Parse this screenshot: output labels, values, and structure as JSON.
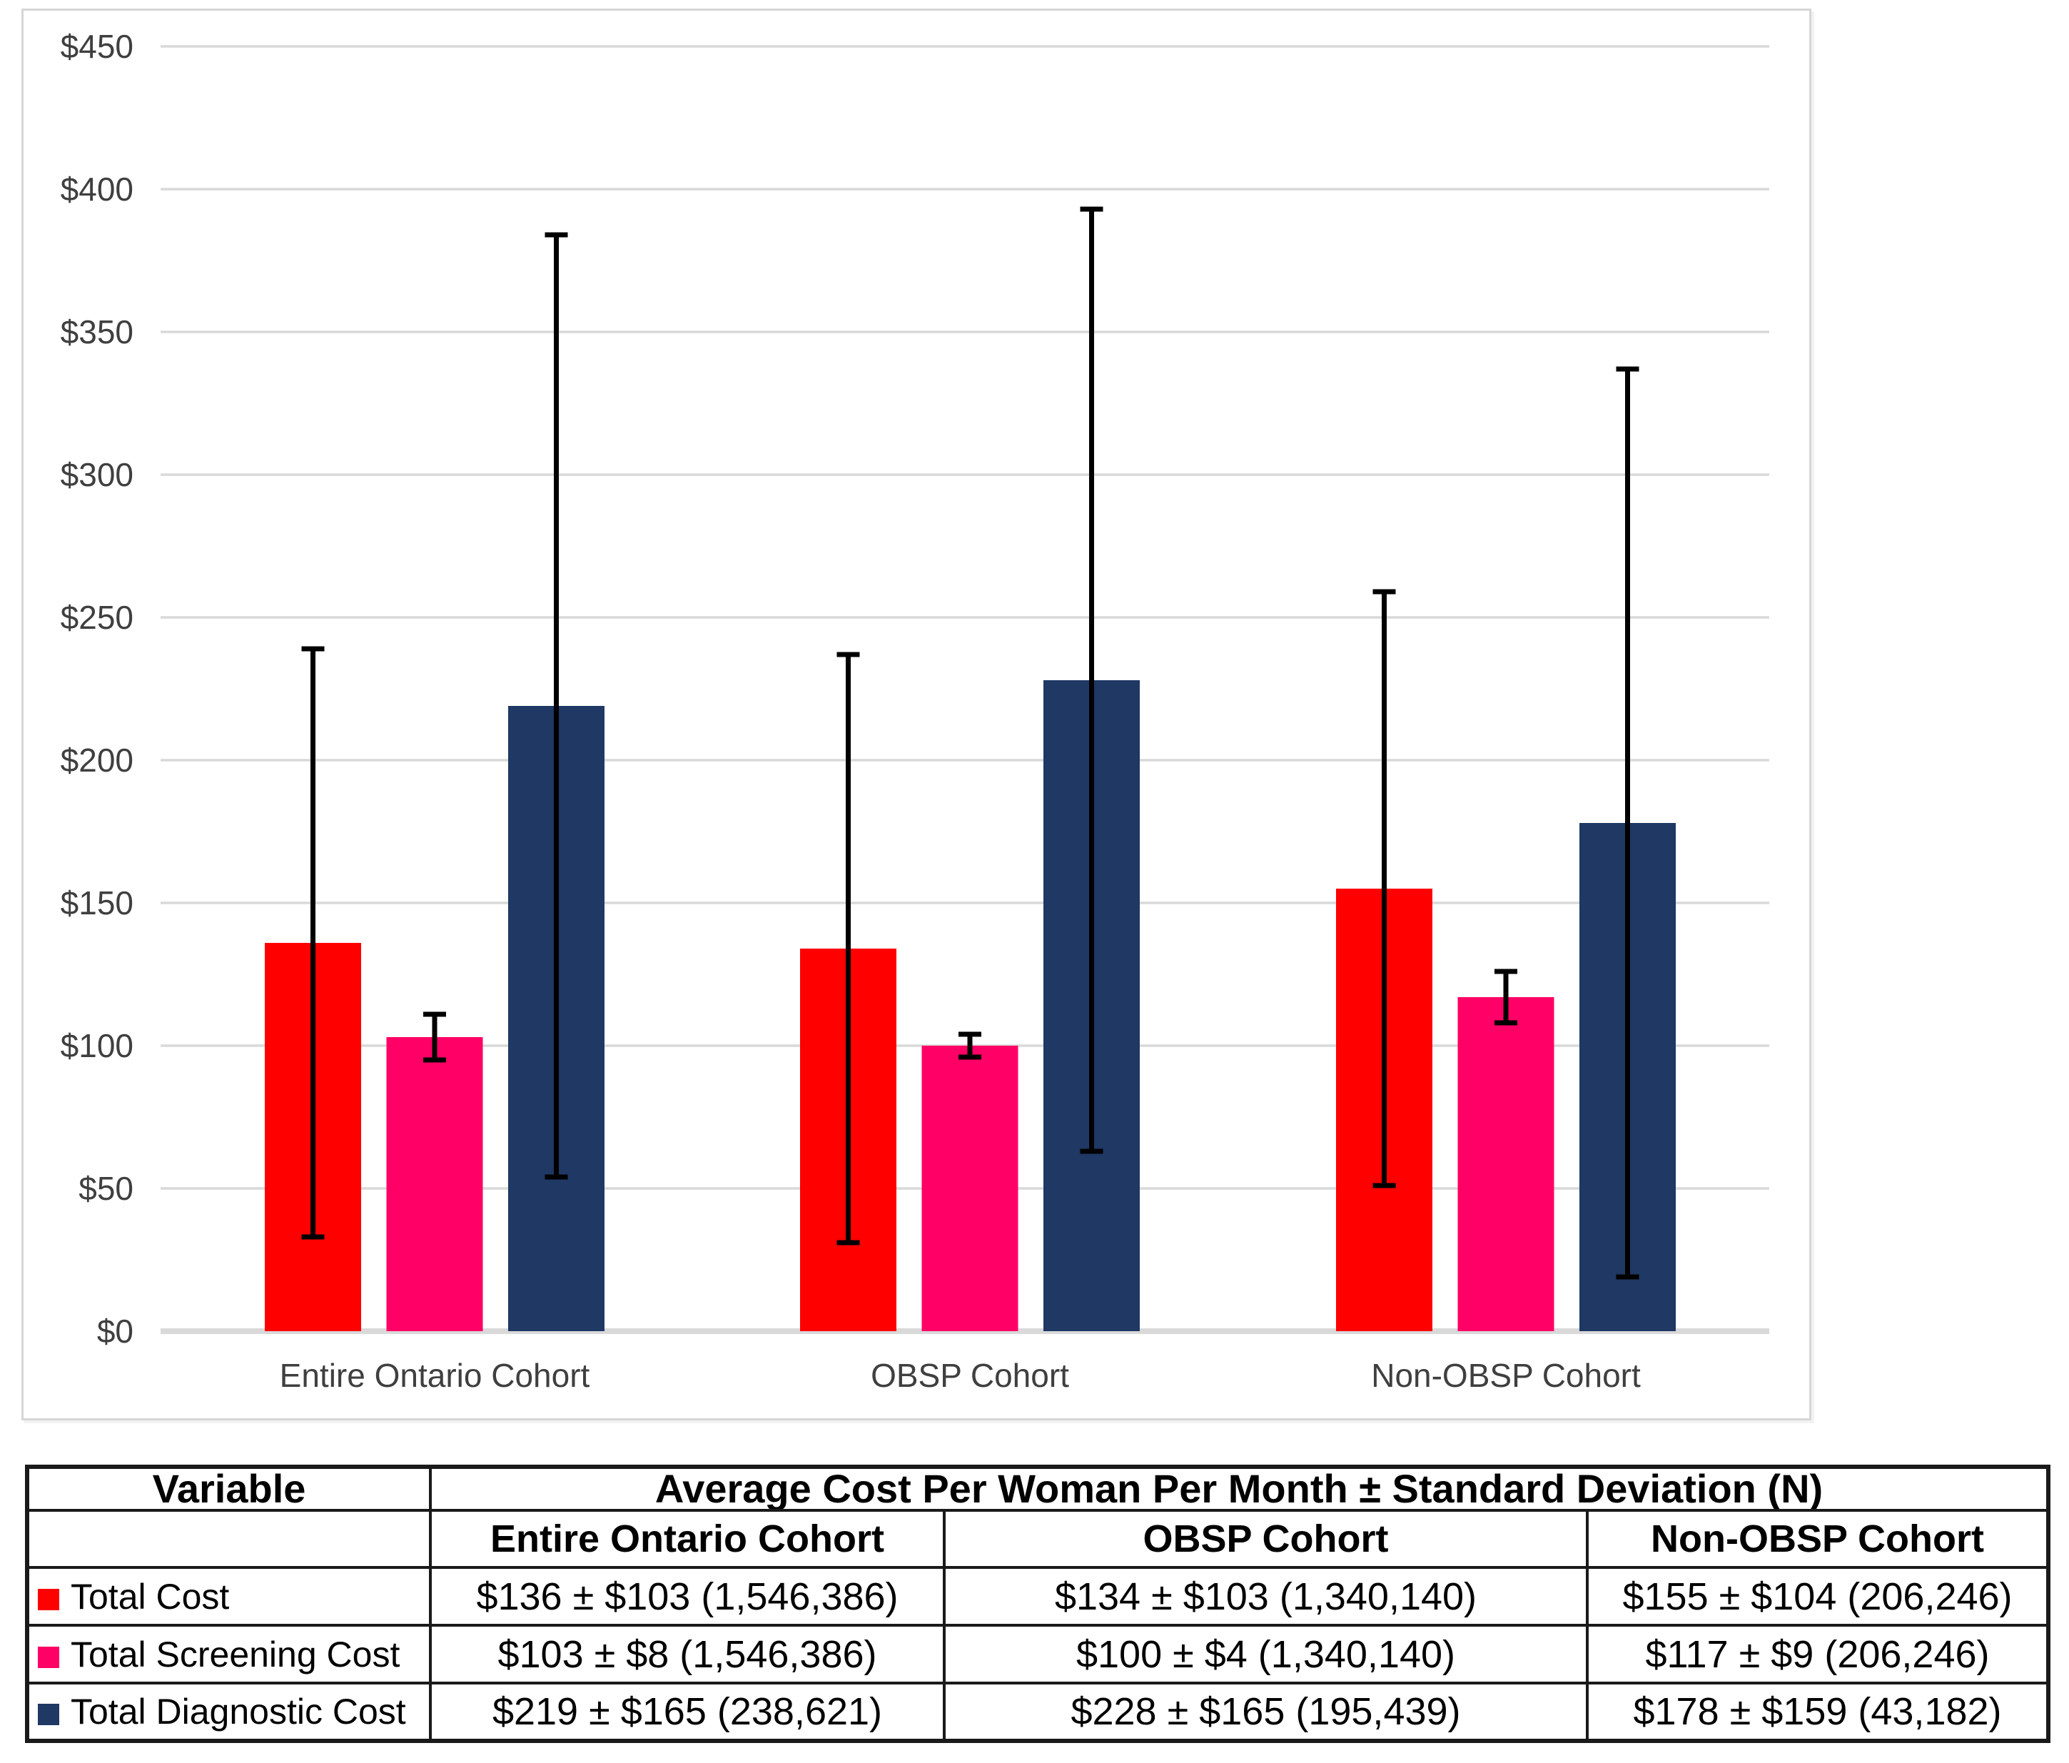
{
  "colors": {
    "gridline": "#D9D9D9",
    "axis_line": "#D9D9D9",
    "axis_text": "#3F3F3F",
    "chart_border": "#D6D6D6",
    "table_border": "#1A1A1A",
    "error_bar": "#000000"
  },
  "chart_data": {
    "type": "bar",
    "title": "",
    "xlabel": "",
    "ylabel": "",
    "categories": [
      "Entire Ontario Cohort",
      "OBSP Cohort",
      "Non-OBSP Cohort"
    ],
    "series": [
      {
        "name": "Total Cost",
        "color": "#FF0000",
        "values": [
          136,
          134,
          155
        ],
        "stdev": [
          103,
          103,
          104
        ]
      },
      {
        "name": "Total Screening Cost",
        "color": "#FF0066",
        "values": [
          103,
          100,
          117
        ],
        "stdev": [
          8,
          4,
          9
        ]
      },
      {
        "name": "Total Diagnostic Cost",
        "color": "#1F3864",
        "values": [
          219,
          228,
          178
        ],
        "stdev": [
          165,
          165,
          159
        ]
      }
    ],
    "error_bars": "± standard deviation, capped",
    "ylim": [
      0,
      450
    ],
    "yticks": [
      {
        "value": 0,
        "label": "$0"
      },
      {
        "value": 50,
        "label": "$50"
      },
      {
        "value": 100,
        "label": "$100"
      },
      {
        "value": 150,
        "label": "$150"
      },
      {
        "value": 200,
        "label": "$200"
      },
      {
        "value": 250,
        "label": "$250"
      },
      {
        "value": 300,
        "label": "$300"
      },
      {
        "value": 350,
        "label": "$350"
      },
      {
        "value": 400,
        "label": "$400"
      },
      {
        "value": 450,
        "label": "$450"
      },
      {
        "value": 450,
        "label": "$450"
      }
    ],
    "grid": true,
    "legend_position": "none"
  },
  "table": {
    "header": {
      "variable": "Variable",
      "span": "Average Cost Per Woman Per Month ± Standard Deviation (N)",
      "cohorts": [
        "Entire Ontario Cohort",
        "OBSP Cohort",
        "Non-OBSP Cohort"
      ]
    },
    "rows": [
      {
        "label": "Total Cost",
        "values": [
          "$136 ± $103 (1,546,386)",
          "$134 ± $103 (1,340,140)",
          "$155 ± $104 (206,246)"
        ]
      },
      {
        "label": "Total Screening Cost",
        "values": [
          "$103 ± $8 (1,546,386)",
          "$100 ± $4 (1,340,140)",
          "$117 ± $9 (206,246)"
        ]
      },
      {
        "label": "Total Diagnostic Cost",
        "values": [
          "$219 ± $165 (238,621)",
          "$228 ± $165 (195,439)",
          "$178 ± $159 (43,182)"
        ]
      }
    ]
  }
}
